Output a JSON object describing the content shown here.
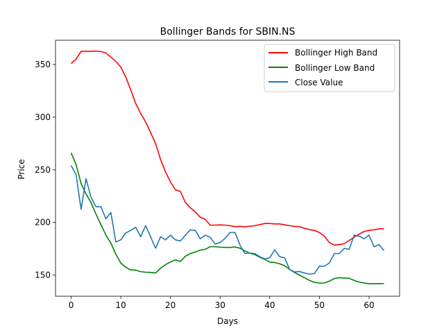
{
  "chart_data": {
    "type": "line",
    "title": "Bollinger Bands for SBIN.NS",
    "xlabel": "Days",
    "ylabel": "Price",
    "xlim": [
      -3.15,
      66.15
    ],
    "ylim": [
      130,
      373
    ],
    "xticks": [
      0,
      10,
      20,
      30,
      40,
      50,
      60
    ],
    "yticks": [
      150,
      200,
      250,
      300,
      350
    ],
    "grid": false,
    "legend_position": "top-right",
    "series": [
      {
        "name": "Bollinger High Band",
        "color": "#ff0000",
        "values": [
          351,
          355,
          362.5,
          362.5,
          362.5,
          362.7,
          362.3,
          361,
          357,
          353,
          347.5,
          338,
          326,
          313,
          303.5,
          295.5,
          285.5,
          275,
          260,
          248,
          238.5,
          231,
          229.5,
          219,
          214,
          210,
          205,
          203,
          197.5,
          197.5,
          197.7,
          197.5,
          197,
          196,
          196.3,
          195.8,
          196.5,
          197,
          198,
          199,
          199,
          198.6,
          198.6,
          197.8,
          197,
          196.2,
          196,
          194.5,
          193.2,
          192.5,
          190.5,
          187,
          181,
          178.5,
          179,
          179.8,
          183,
          186,
          189,
          191.5,
          192.5,
          193,
          194,
          194
        ]
      },
      {
        "name": "Bollinger Low Band",
        "color": "#008000",
        "values": [
          266,
          255,
          237,
          227,
          219,
          208,
          198,
          188,
          180.5,
          170,
          161.5,
          157.5,
          155,
          154.8,
          153.3,
          152.8,
          152.6,
          152,
          156.5,
          160,
          162.5,
          164.5,
          163,
          168,
          170.5,
          172,
          173.8,
          174.5,
          177,
          177,
          176.6,
          176.3,
          176.3,
          176.8,
          175.6,
          173,
          170.8,
          169.5,
          167,
          165,
          162.5,
          162,
          160.8,
          159,
          155.5,
          152.5,
          150,
          147.5,
          145,
          143.2,
          142.5,
          142.6,
          144.3,
          146.8,
          147.6,
          147.3,
          147,
          145,
          143.5,
          142.5,
          141.9,
          141.9,
          141.9,
          142.1
        ]
      },
      {
        "name": "Close Value",
        "color": "#1f77b4",
        "values": [
          254,
          245.5,
          212.5,
          241.5,
          224,
          215,
          215,
          203.5,
          209.5,
          181.5,
          183.5,
          190,
          192.5,
          195.5,
          186.5,
          197,
          186.5,
          175.5,
          186.5,
          183.5,
          188,
          183.5,
          182.5,
          188,
          193,
          192.5,
          184.5,
          188,
          186,
          179.5,
          181,
          185,
          190.5,
          190.5,
          178.5,
          170.5,
          171,
          170.5,
          167.5,
          165.5,
          166.5,
          174,
          167.5,
          166.5,
          155.5,
          153,
          153.5,
          152,
          151,
          151.5,
          158.5,
          158.5,
          161.5,
          170.5,
          170.5,
          175.5,
          174.5,
          188,
          187,
          184.5,
          188,
          177,
          179,
          173.5
        ]
      }
    ]
  }
}
